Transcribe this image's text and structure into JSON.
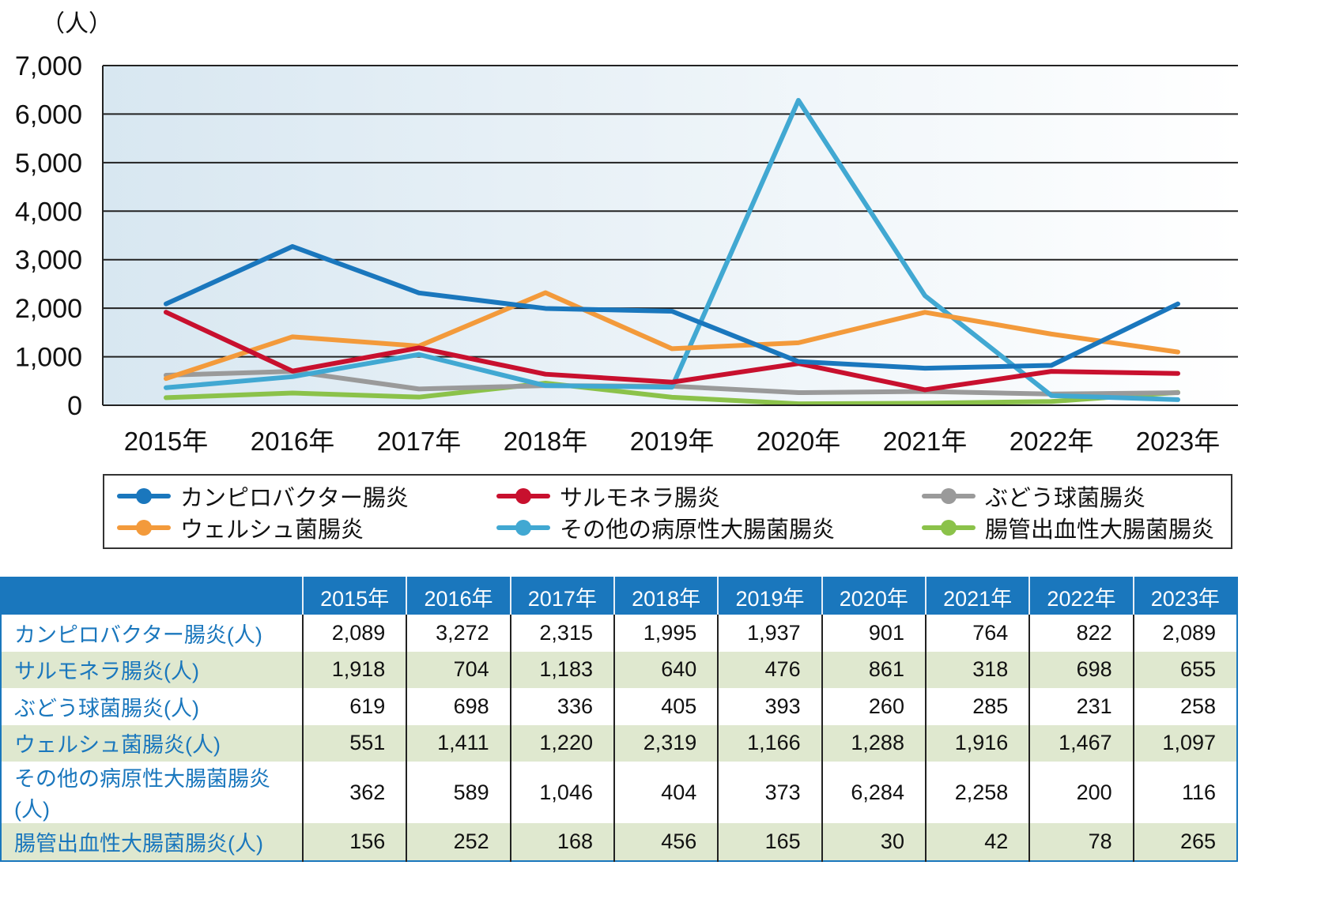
{
  "chart_data": {
    "type": "line",
    "title": "",
    "ylabel": "（人）",
    "xlabel": "",
    "ylim": [
      0,
      7000
    ],
    "yticks": [
      0,
      1000,
      2000,
      3000,
      4000,
      5000,
      6000,
      7000
    ],
    "ytick_labels": [
      "0",
      "1,000",
      "2,000",
      "3,000",
      "4,000",
      "5,000",
      "6,000",
      "7,000"
    ],
    "grid": true,
    "legend_position": "bottom",
    "categories": [
      "2015年",
      "2016年",
      "2017年",
      "2018年",
      "2019年",
      "2020年",
      "2021年",
      "2022年",
      "2023年"
    ],
    "series": [
      {
        "name": "カンピロバクター腸炎",
        "color": "#1a77bd",
        "values": [
          2089,
          3272,
          2315,
          1995,
          1937,
          901,
          764,
          822,
          2089
        ]
      },
      {
        "name": "サルモネラ腸炎",
        "color": "#c8102e",
        "values": [
          1918,
          704,
          1183,
          640,
          476,
          861,
          318,
          698,
          655
        ]
      },
      {
        "name": "ぶどう球菌腸炎",
        "color": "#9a9a9a",
        "values": [
          619,
          698,
          336,
          405,
          393,
          260,
          285,
          231,
          258
        ]
      },
      {
        "name": "ウェルシュ菌腸炎",
        "color": "#f39a3b",
        "values": [
          551,
          1411,
          1220,
          2319,
          1166,
          1288,
          1916,
          1467,
          1097
        ]
      },
      {
        "name": "その他の病原性大腸菌腸炎",
        "color": "#41a8d2",
        "values": [
          362,
          589,
          1046,
          404,
          373,
          6284,
          2258,
          200,
          116
        ]
      },
      {
        "name": "腸管出血性大腸菌腸炎",
        "color": "#8bc24a",
        "values": [
          156,
          252,
          168,
          456,
          165,
          30,
          42,
          78,
          265
        ]
      }
    ]
  },
  "table": {
    "corner": "",
    "headers": [
      "2015年",
      "2016年",
      "2017年",
      "2018年",
      "2019年",
      "2020年",
      "2021年",
      "2022年",
      "2023年"
    ],
    "rows": [
      {
        "label": "カンピロバクター腸炎(人)",
        "cells": [
          "2,089",
          "3,272",
          "2,315",
          "1,995",
          "1,937",
          "901",
          "764",
          "822",
          "2,089"
        ]
      },
      {
        "label": "サルモネラ腸炎(人)",
        "cells": [
          "1,918",
          "704",
          "1,183",
          "640",
          "476",
          "861",
          "318",
          "698",
          "655"
        ]
      },
      {
        "label": "ぶどう球菌腸炎(人)",
        "cells": [
          "619",
          "698",
          "336",
          "405",
          "393",
          "260",
          "285",
          "231",
          "258"
        ]
      },
      {
        "label": "ウェルシュ菌腸炎(人)",
        "cells": [
          "551",
          "1,411",
          "1,220",
          "2,319",
          "1,166",
          "1,288",
          "1,916",
          "1,467",
          "1,097"
        ]
      },
      {
        "label": "その他の病原性大腸菌腸炎(人)",
        "cells": [
          "362",
          "589",
          "1,046",
          "404",
          "373",
          "6,284",
          "2,258",
          "200",
          "116"
        ]
      },
      {
        "label": "腸管出血性大腸菌腸炎(人)",
        "cells": [
          "156",
          "252",
          "168",
          "456",
          "165",
          "30",
          "42",
          "78",
          "265"
        ]
      }
    ]
  },
  "colors": {
    "table_header": "#1a77bd",
    "row_label_text": "#1a77bd",
    "alt_row": "#dfe8cf",
    "plot_bg_left": "#d8e7f1",
    "plot_bg_right": "#ffffff"
  }
}
